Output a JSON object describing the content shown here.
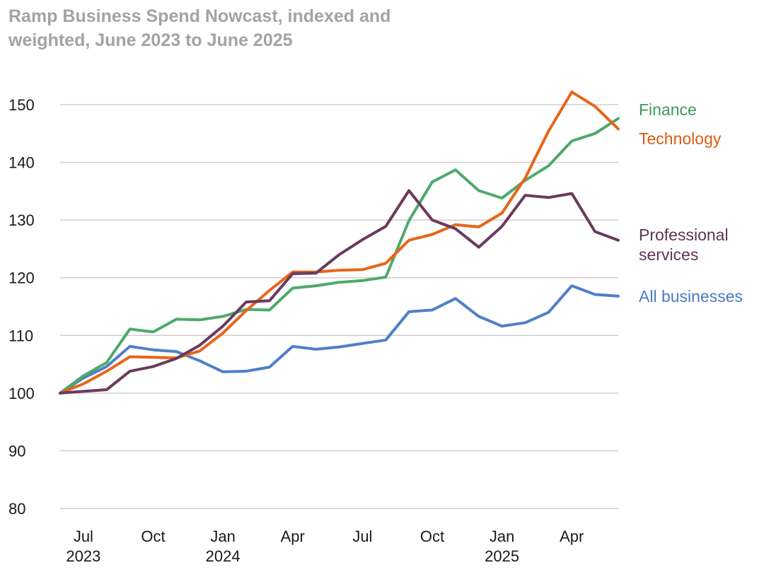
{
  "chart_data": {
    "type": "line",
    "title": "Ramp Business Spend Nowcast, indexed and weighted, June 2023 to June 2025",
    "xlabel": "",
    "ylabel": "",
    "ylim": [
      80,
      150
    ],
    "yticks": [
      80,
      90,
      100,
      110,
      120,
      130,
      140,
      150
    ],
    "grid": true,
    "x": [
      "2023-06",
      "2023-07",
      "2023-08",
      "2023-09",
      "2023-10",
      "2023-11",
      "2023-12",
      "2024-01",
      "2024-02",
      "2024-03",
      "2024-04",
      "2024-05",
      "2024-06",
      "2024-07",
      "2024-08",
      "2024-09",
      "2024-10",
      "2024-11",
      "2024-12",
      "2025-01",
      "2025-02",
      "2025-03",
      "2025-04",
      "2025-05",
      "2025-06"
    ],
    "xticks": [
      {
        "index": 1,
        "month": "Jul",
        "year": "2023"
      },
      {
        "index": 4,
        "month": "Oct",
        "year": ""
      },
      {
        "index": 7,
        "month": "Jan",
        "year": "2024"
      },
      {
        "index": 10,
        "month": "Apr",
        "year": ""
      },
      {
        "index": 13,
        "month": "Jul",
        "year": ""
      },
      {
        "index": 16,
        "month": "Oct",
        "year": ""
      },
      {
        "index": 19,
        "month": "Jan",
        "year": "2025"
      },
      {
        "index": 22,
        "month": "Apr",
        "year": ""
      }
    ],
    "series": [
      {
        "name": "Finance",
        "key": "finance",
        "color": "#4fa96a",
        "label_color": "#3d9a5a",
        "values": [
          100,
          103.0,
          105.3,
          111.1,
          110.6,
          112.8,
          112.7,
          113.3,
          114.5,
          114.4,
          118.2,
          118.6,
          119.2,
          119.5,
          120.1,
          129.9,
          136.6,
          138.7,
          135.1,
          133.8,
          136.9,
          139.4,
          143.7,
          145.0,
          147.6
        ]
      },
      {
        "name": "Technology",
        "key": "technology",
        "color": "#e8651a",
        "label_color": "#de5a12",
        "values": [
          100,
          101.6,
          103.8,
          106.3,
          106.2,
          106.1,
          107.3,
          110.4,
          114.3,
          117.8,
          121.0,
          121.0,
          121.3,
          121.4,
          122.5,
          126.5,
          127.5,
          129.2,
          128.8,
          131.2,
          137.3,
          145.4,
          152.2,
          149.7,
          145.8
        ]
      },
      {
        "name": "Professional services",
        "key": "professional",
        "label_lines": [
          "Professional",
          "services"
        ],
        "color": "#6b3a5e",
        "label_color": "#5e3555",
        "values": [
          100,
          100.3,
          100.6,
          103.8,
          104.6,
          106.0,
          108.3,
          111.6,
          115.8,
          116.0,
          120.7,
          120.8,
          124.0,
          126.6,
          128.9,
          135.1,
          130.0,
          128.5,
          125.3,
          128.9,
          134.3,
          133.9,
          134.6,
          128.0,
          126.5
        ]
      },
      {
        "name": "All businesses",
        "key": "all",
        "color": "#4f7fc8",
        "label_color": "#4a7ac4",
        "values": [
          100,
          102.6,
          104.6,
          108.1,
          107.5,
          107.2,
          105.6,
          103.7,
          103.8,
          104.5,
          108.1,
          107.6,
          108.0,
          108.6,
          109.2,
          114.1,
          114.4,
          116.4,
          113.3,
          111.6,
          112.2,
          114.0,
          118.6,
          117.1,
          116.8
        ]
      }
    ]
  }
}
